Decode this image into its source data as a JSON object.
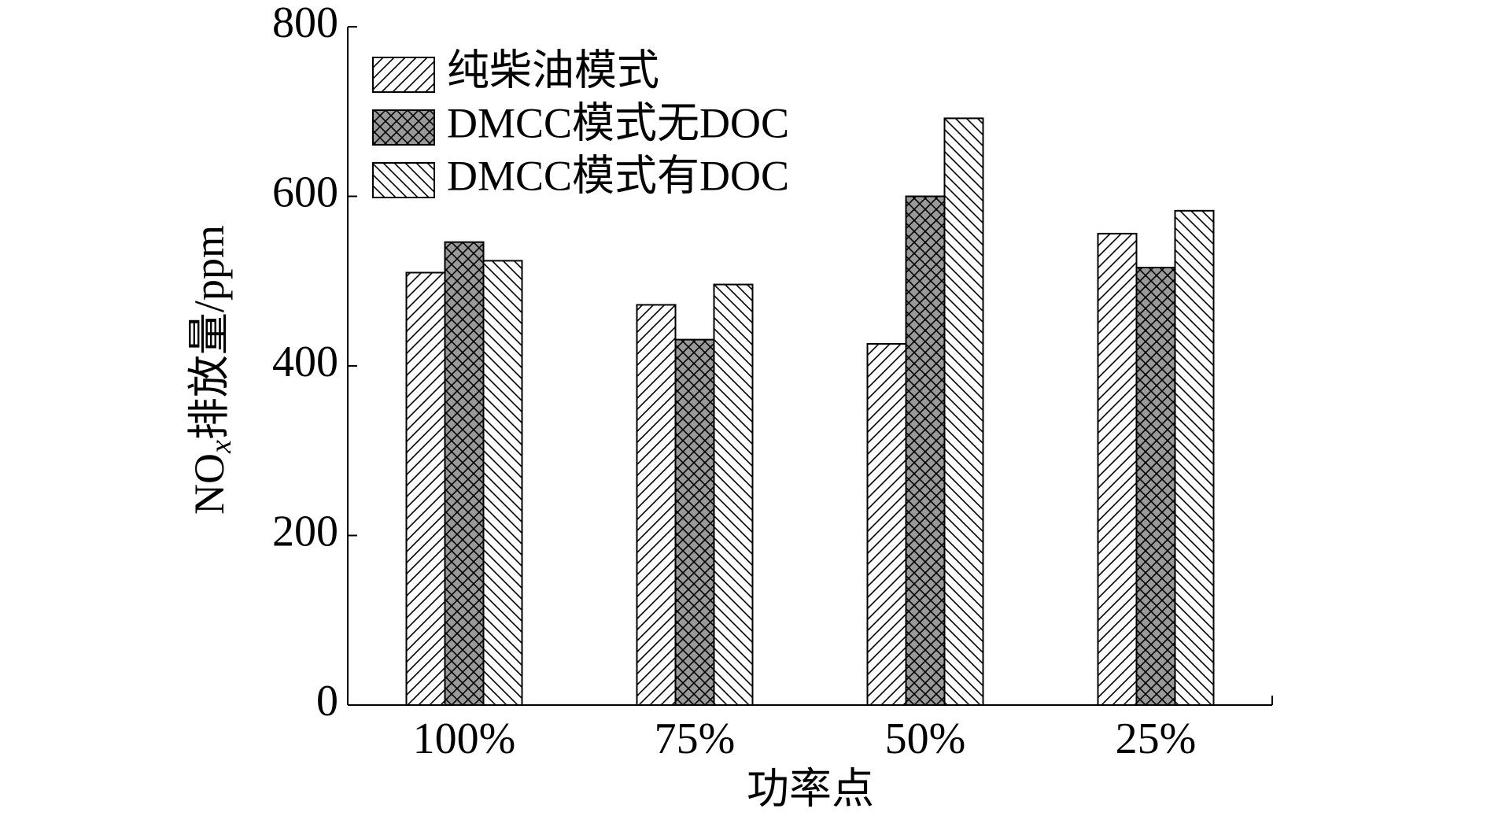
{
  "chart_data": {
    "type": "bar",
    "x_label": "功率点",
    "y_label": [
      "NO",
      "x",
      "排放量/ppm"
    ],
    "categories": [
      "100%",
      "75%",
      "50%",
      "25%"
    ],
    "series": [
      {
        "name": "纯柴油模式",
        "color": "#ffffff",
        "hatch": "/",
        "values": [
          510,
          472,
          426,
          556
        ]
      },
      {
        "name": "DMCC模式无DOC",
        "color": "#999999",
        "hatch": "x",
        "values": [
          546,
          431,
          600,
          516
        ]
      },
      {
        "name": "DMCC模式有DOC",
        "color": "#ffffff",
        "hatch": "\\",
        "values": [
          524,
          496,
          692,
          583
        ]
      }
    ],
    "ylim": [
      0,
      800
    ],
    "yticks": [
      0,
      200,
      400,
      600,
      800
    ],
    "legend": "upper left"
  }
}
